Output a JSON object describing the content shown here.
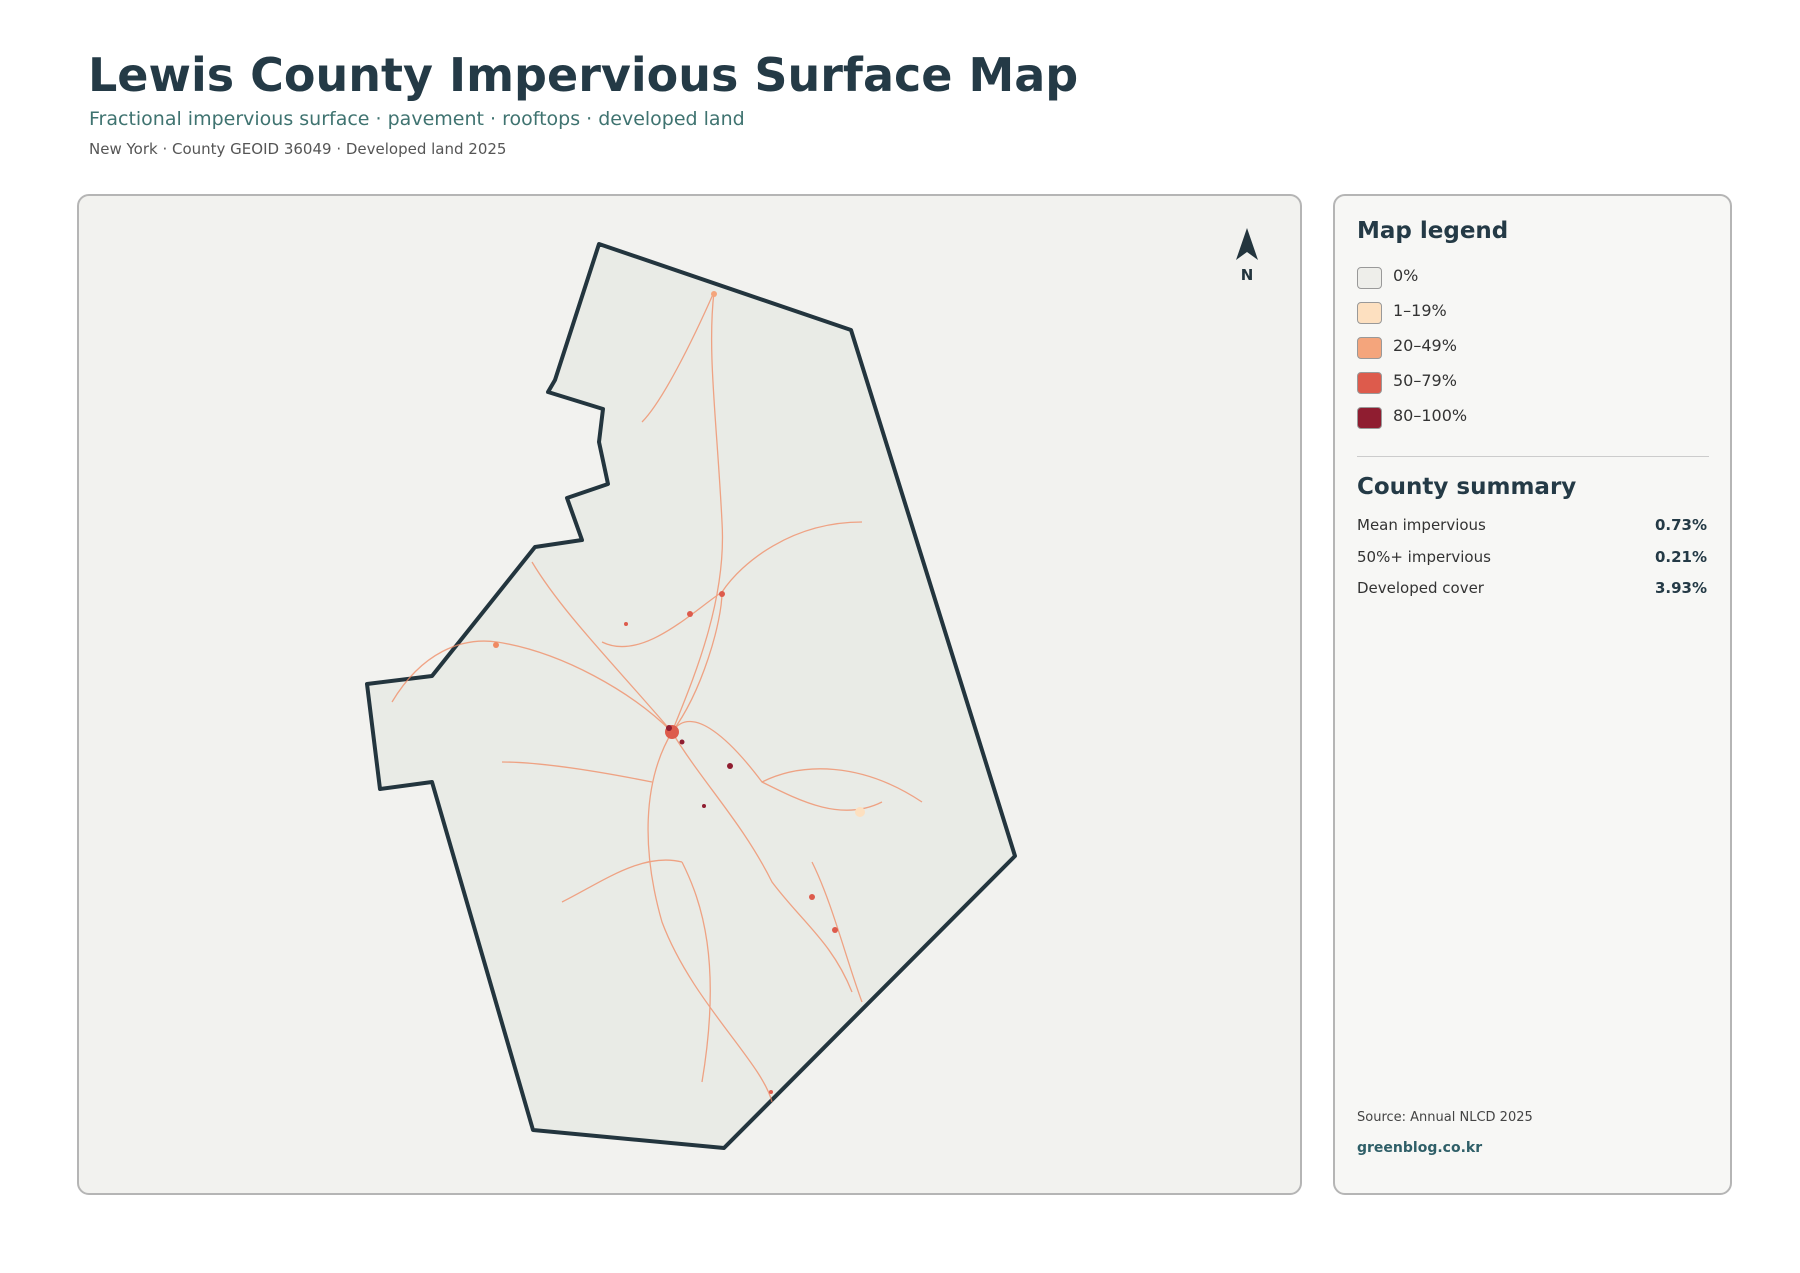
{
  "header": {
    "title": "Lewis County Impervious Surface Map",
    "subtitle": "Fractional impervious surface · pavement · rooftops · developed land",
    "meta": "New York · County GEOID 36049 · Developed land 2025"
  },
  "map": {
    "north_label": "N"
  },
  "legend": {
    "title": "Map legend",
    "items": [
      {
        "label": "0%",
        "color": "#eeeeea"
      },
      {
        "label": "1–19%",
        "color": "#fde0c0"
      },
      {
        "label": "20–49%",
        "color": "#f4a57c"
      },
      {
        "label": "50–79%",
        "color": "#dd5b4c"
      },
      {
        "label": "80–100%",
        "color": "#8f1d30"
      }
    ]
  },
  "summary": {
    "title": "County summary",
    "rows": [
      [
        "Mean impervious",
        "0.73%"
      ],
      [
        "50%+ impervious",
        "0.21%"
      ],
      [
        "Developed cover",
        "3.93%"
      ]
    ]
  },
  "footer": {
    "source": "Source: Annual NLCD 2025",
    "site": "greenblog.co.kr"
  }
}
